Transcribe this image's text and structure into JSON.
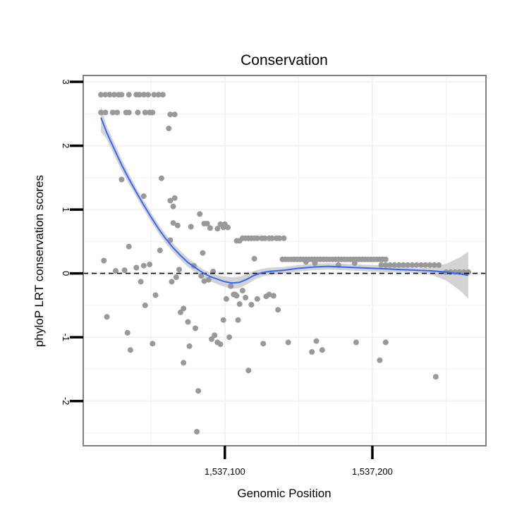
{
  "chart_data": {
    "type": "scatter",
    "title": "Conservation",
    "xlabel": "Genomic Position",
    "ylabel": "phyloP LRT conservation scores",
    "xlim": [
      1537004,
      1537277
    ],
    "ylim": [
      -2.7,
      3.1
    ],
    "grid": true,
    "x_ticks": [
      {
        "value": 1537100,
        "label": "1,537,100"
      },
      {
        "value": 1537200,
        "label": "1,537,200"
      }
    ],
    "y_ticks": [
      {
        "value": -2,
        "label": "-2"
      },
      {
        "value": -1,
        "label": "-1"
      },
      {
        "value": 0,
        "label": "0"
      },
      {
        "value": 1,
        "label": "1"
      },
      {
        "value": 2,
        "label": "2"
      },
      {
        "value": 3,
        "label": "3"
      }
    ],
    "reference_line": {
      "y": 0,
      "style": "dashed",
      "color": "#000000"
    },
    "points_color": "#999999",
    "smooth_color": "#3366FF",
    "band_color": "#D3D3D3",
    "points": [
      [
        1537016,
        2.8
      ],
      [
        1537019,
        2.8
      ],
      [
        1537022,
        2.8
      ],
      [
        1537025,
        2.8
      ],
      [
        1537028,
        2.8
      ],
      [
        1537030,
        2.8
      ],
      [
        1537035,
        2.8
      ],
      [
        1537040,
        2.8
      ],
      [
        1537042,
        2.8
      ],
      [
        1537045,
        2.8
      ],
      [
        1537048,
        2.8
      ],
      [
        1537052,
        2.8
      ],
      [
        1537055,
        2.8
      ],
      [
        1537058,
        2.8
      ],
      [
        1537016,
        2.52
      ],
      [
        1537019,
        2.52
      ],
      [
        1537024,
        2.52
      ],
      [
        1537027,
        2.52
      ],
      [
        1537033,
        2.52
      ],
      [
        1537035,
        2.52
      ],
      [
        1537041,
        2.52
      ],
      [
        1537046,
        2.52
      ],
      [
        1537049,
        2.52
      ],
      [
        1537051,
        2.52
      ],
      [
        1537063,
        2.49
      ],
      [
        1537066,
        2.49
      ],
      [
        1537062,
        2.27
      ],
      [
        1537030,
        1.47
      ],
      [
        1537057,
        1.49
      ],
      [
        1537045,
        1.21
      ],
      [
        1537063,
        1.14
      ],
      [
        1537066,
        1.18
      ],
      [
        1537065,
        1.05
      ],
      [
        1537035,
        0.42
      ],
      [
        1537056,
        0.36
      ],
      [
        1537018,
        0.2
      ],
      [
        1537026,
        0.04
      ],
      [
        1537032,
        0.05
      ],
      [
        1537040,
        0.09
      ],
      [
        1537045,
        0.12
      ],
      [
        1537049,
        0.14
      ],
      [
        1537043,
        -0.13
      ],
      [
        1537046,
        -0.5
      ],
      [
        1537053,
        -0.34
      ],
      [
        1537034,
        -0.93
      ],
      [
        1537036,
        -1.2
      ],
      [
        1537020,
        -0.68
      ],
      [
        1537051,
        -1.1
      ],
      [
        1537065,
        0.79
      ],
      [
        1537068,
        0.75
      ],
      [
        1537063,
        0.52
      ],
      [
        1537069,
        0.06
      ],
      [
        1537064,
        -0.13
      ],
      [
        1537067,
        -0.06
      ],
      [
        1537070,
        -0.61
      ],
      [
        1537072,
        -0.55
      ],
      [
        1537075,
        -0.76
      ],
      [
        1537076,
        -1.14
      ],
      [
        1537072,
        -1.4
      ],
      [
        1537077,
        0.73
      ],
      [
        1537079,
        0.12
      ],
      [
        1537080,
        -0.86
      ],
      [
        1537082,
        -1.84
      ],
      [
        1537081,
        -2.48
      ],
      [
        1537083,
        0.93
      ],
      [
        1537085,
        0.32
      ],
      [
        1537086,
        0.78
      ],
      [
        1537088,
        0.78
      ],
      [
        1537090,
        0.71
      ],
      [
        1537092,
        0.03
      ],
      [
        1537095,
        0.7
      ],
      [
        1537097,
        0.77
      ],
      [
        1537099,
        0.72
      ],
      [
        1537100,
        0.77
      ],
      [
        1537102,
        0.72
      ],
      [
        1537084,
        -0.04
      ],
      [
        1537086,
        -0.12
      ],
      [
        1537089,
        -0.1
      ],
      [
        1537091,
        -1.03
      ],
      [
        1537093,
        -0.97
      ],
      [
        1537095,
        -1.08
      ],
      [
        1537097,
        -1.11
      ],
      [
        1537099,
        -0.73
      ],
      [
        1537101,
        -0.4
      ],
      [
        1537103,
        -1.0
      ],
      [
        1537104,
        -0.2
      ],
      [
        1537106,
        -0.33
      ],
      [
        1537107,
        -0.33
      ],
      [
        1537108,
        -0.35
      ],
      [
        1537109,
        -0.73
      ],
      [
        1537110,
        -0.48
      ],
      [
        1537112,
        -0.27
      ],
      [
        1537114,
        -0.38
      ],
      [
        1537116,
        -1.52
      ],
      [
        1537118,
        -0.49
      ],
      [
        1537108,
        0.51
      ],
      [
        1537110,
        0.51
      ],
      [
        1537112,
        0.55
      ],
      [
        1537114,
        0.55
      ],
      [
        1537116,
        0.55
      ],
      [
        1537118,
        0.55
      ],
      [
        1537120,
        0.55
      ],
      [
        1537122,
        0.55
      ],
      [
        1537125,
        0.55
      ],
      [
        1537127,
        0.55
      ],
      [
        1537130,
        0.55
      ],
      [
        1537132,
        0.55
      ],
      [
        1537135,
        0.55
      ],
      [
        1537137,
        0.55
      ],
      [
        1537140,
        0.55
      ],
      [
        1537120,
        0.23
      ],
      [
        1537122,
        -0.4
      ],
      [
        1537126,
        -1.1
      ],
      [
        1537128,
        -0.36
      ],
      [
        1537130,
        -0.33
      ],
      [
        1537133,
        -0.35
      ],
      [
        1537136,
        -0.57
      ],
      [
        1537143,
        -1.08
      ],
      [
        1537139,
        0.22
      ],
      [
        1537141,
        0.22
      ],
      [
        1537143,
        0.22
      ],
      [
        1537145,
        0.22
      ],
      [
        1537147,
        0.22
      ],
      [
        1537149,
        0.22
      ],
      [
        1537151,
        0.22
      ],
      [
        1537153,
        0.22
      ],
      [
        1537155,
        0.22
      ],
      [
        1537157,
        0.22
      ],
      [
        1537159,
        0.22
      ],
      [
        1537161,
        0.22
      ],
      [
        1537163,
        0.22
      ],
      [
        1537165,
        0.22
      ],
      [
        1537167,
        0.22
      ],
      [
        1537169,
        0.22
      ],
      [
        1537171,
        0.22
      ],
      [
        1537173,
        0.22
      ],
      [
        1537175,
        0.22
      ],
      [
        1537177,
        0.22
      ],
      [
        1537179,
        0.22
      ],
      [
        1537181,
        0.22
      ],
      [
        1537183,
        0.22
      ],
      [
        1537185,
        0.22
      ],
      [
        1537187,
        0.22
      ],
      [
        1537189,
        0.22
      ],
      [
        1537191,
        0.22
      ],
      [
        1537193,
        0.22
      ],
      [
        1537195,
        0.22
      ],
      [
        1537197,
        0.22
      ],
      [
        1537199,
        0.22
      ],
      [
        1537201,
        0.22
      ],
      [
        1537203,
        0.22
      ],
      [
        1537205,
        0.22
      ],
      [
        1537207,
        0.22
      ],
      [
        1537209,
        0.22
      ],
      [
        1537155,
        0.18
      ],
      [
        1537161,
        0.16
      ],
      [
        1537177,
        0.13
      ],
      [
        1537188,
        0.16
      ],
      [
        1537159,
        -1.23
      ],
      [
        1537162,
        -1.06
      ],
      [
        1537166,
        -1.2
      ],
      [
        1537189,
        -1.08
      ],
      [
        1537205,
        -1.36
      ],
      [
        1537209,
        -1.08
      ],
      [
        1537243,
        -1.62
      ],
      [
        1537206,
        0.13
      ],
      [
        1537209,
        0.13
      ],
      [
        1537212,
        0.13
      ],
      [
        1537215,
        0.13
      ],
      [
        1537218,
        0.13
      ],
      [
        1537221,
        0.13
      ],
      [
        1537224,
        0.13
      ],
      [
        1537227,
        0.13
      ],
      [
        1537230,
        0.13
      ],
      [
        1537233,
        0.13
      ],
      [
        1537236,
        0.13
      ],
      [
        1537239,
        0.13
      ],
      [
        1537242,
        0.13
      ],
      [
        1537245,
        0.13
      ],
      [
        1537250,
        0.02
      ],
      [
        1537253,
        0.02
      ],
      [
        1537256,
        0.02
      ],
      [
        1537259,
        0.02
      ],
      [
        1537262,
        0.02
      ],
      [
        1537265,
        0.02
      ]
    ],
    "smooth": [
      [
        1537016,
        2.44
      ],
      [
        1537020,
        2.2
      ],
      [
        1537025,
        1.95
      ],
      [
        1537030,
        1.7
      ],
      [
        1537035,
        1.48
      ],
      [
        1537040,
        1.27
      ],
      [
        1537045,
        1.07
      ],
      [
        1537050,
        0.88
      ],
      [
        1537055,
        0.7
      ],
      [
        1537060,
        0.54
      ],
      [
        1537065,
        0.4
      ],
      [
        1537070,
        0.28
      ],
      [
        1537075,
        0.17
      ],
      [
        1537080,
        0.09
      ],
      [
        1537085,
        0.01
      ],
      [
        1537090,
        -0.05
      ],
      [
        1537095,
        -0.09
      ],
      [
        1537100,
        -0.13
      ],
      [
        1537105,
        -0.15
      ],
      [
        1537110,
        -0.14
      ],
      [
        1537115,
        -0.09
      ],
      [
        1537120,
        -0.03
      ],
      [
        1537125,
        0.01
      ],
      [
        1537130,
        0.03
      ],
      [
        1537140,
        0.05
      ],
      [
        1537150,
        0.08
      ],
      [
        1537160,
        0.1
      ],
      [
        1537170,
        0.11
      ],
      [
        1537180,
        0.1
      ],
      [
        1537190,
        0.09
      ],
      [
        1537200,
        0.08
      ],
      [
        1537210,
        0.07
      ],
      [
        1537220,
        0.06
      ],
      [
        1537230,
        0.05
      ],
      [
        1537240,
        0.04
      ],
      [
        1537250,
        0.02
      ],
      [
        1537260,
        -0.01
      ],
      [
        1537265,
        -0.03
      ]
    ],
    "band_upper": [
      [
        1537016,
        2.62
      ],
      [
        1537020,
        2.3
      ],
      [
        1537025,
        2.05
      ],
      [
        1537030,
        1.79
      ],
      [
        1537035,
        1.56
      ],
      [
        1537040,
        1.34
      ],
      [
        1537045,
        1.14
      ],
      [
        1537050,
        0.95
      ],
      [
        1537055,
        0.77
      ],
      [
        1537060,
        0.61
      ],
      [
        1537065,
        0.47
      ],
      [
        1537070,
        0.35
      ],
      [
        1537075,
        0.24
      ],
      [
        1537080,
        0.15
      ],
      [
        1537085,
        0.07
      ],
      [
        1537090,
        0.01
      ],
      [
        1537095,
        -0.03
      ],
      [
        1537100,
        -0.05
      ],
      [
        1537105,
        -0.06
      ],
      [
        1537110,
        -0.05
      ],
      [
        1537115,
        -0.01
      ],
      [
        1537120,
        0.04
      ],
      [
        1537125,
        0.07
      ],
      [
        1537130,
        0.09
      ],
      [
        1537140,
        0.1
      ],
      [
        1537150,
        0.13
      ],
      [
        1537160,
        0.15
      ],
      [
        1537170,
        0.16
      ],
      [
        1537180,
        0.15
      ],
      [
        1537190,
        0.14
      ],
      [
        1537200,
        0.13
      ],
      [
        1537210,
        0.12
      ],
      [
        1537220,
        0.1
      ],
      [
        1537230,
        0.08
      ],
      [
        1537240,
        0.09
      ],
      [
        1537250,
        0.15
      ],
      [
        1537260,
        0.26
      ],
      [
        1537265,
        0.34
      ]
    ],
    "band_lower": [
      [
        1537016,
        2.22
      ],
      [
        1537020,
        2.1
      ],
      [
        1537025,
        1.85
      ],
      [
        1537030,
        1.61
      ],
      [
        1537035,
        1.4
      ],
      [
        1537040,
        1.2
      ],
      [
        1537045,
        1.0
      ],
      [
        1537050,
        0.81
      ],
      [
        1537055,
        0.63
      ],
      [
        1537060,
        0.47
      ],
      [
        1537065,
        0.33
      ],
      [
        1537070,
        0.21
      ],
      [
        1537075,
        0.1
      ],
      [
        1537080,
        0.02
      ],
      [
        1537085,
        -0.05
      ],
      [
        1537090,
        -0.12
      ],
      [
        1537095,
        -0.17
      ],
      [
        1537100,
        -0.21
      ],
      [
        1537105,
        -0.24
      ],
      [
        1537110,
        -0.23
      ],
      [
        1537115,
        -0.17
      ],
      [
        1537120,
        -0.1
      ],
      [
        1537125,
        -0.05
      ],
      [
        1537130,
        -0.03
      ],
      [
        1537140,
        0.0
      ],
      [
        1537150,
        0.03
      ],
      [
        1537160,
        0.05
      ],
      [
        1537170,
        0.06
      ],
      [
        1537180,
        0.05
      ],
      [
        1537190,
        0.04
      ],
      [
        1537200,
        0.03
      ],
      [
        1537210,
        0.02
      ],
      [
        1537220,
        0.02
      ],
      [
        1537230,
        0.01
      ],
      [
        1537240,
        -0.02
      ],
      [
        1537250,
        -0.11
      ],
      [
        1537260,
        -0.28
      ],
      [
        1537265,
        -0.4
      ]
    ]
  }
}
